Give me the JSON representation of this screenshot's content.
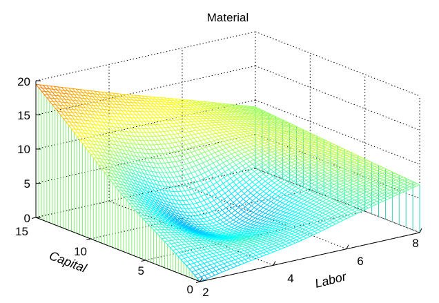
{
  "chart_data": {
    "type": "surface-mesh-3d",
    "title": "Material",
    "xlabel": "Labor",
    "ylabel": "Capital",
    "zlabel": "",
    "xlim": [
      2,
      8
    ],
    "ylim": [
      0,
      15
    ],
    "zlim": [
      0,
      20
    ],
    "xticks": [
      "2",
      "4",
      "6",
      "8"
    ],
    "yticks": [
      "0",
      "5",
      "10",
      "15"
    ],
    "zticks": [
      "0",
      "5",
      "10",
      "15",
      "20"
    ],
    "grid": true,
    "colormap": "jet",
    "surface": {
      "labor_range": [
        2,
        8
      ],
      "capital_range": [
        0,
        15
      ],
      "corner_values": {
        "labor_2_capital_15": 19.5,
        "labor_2_capital_0": 0,
        "labor_8_capital_15": 9,
        "labor_8_capital_0": 7
      },
      "minimum": {
        "labor": 4.2,
        "capital": 5.5,
        "material": 0.2
      }
    }
  }
}
